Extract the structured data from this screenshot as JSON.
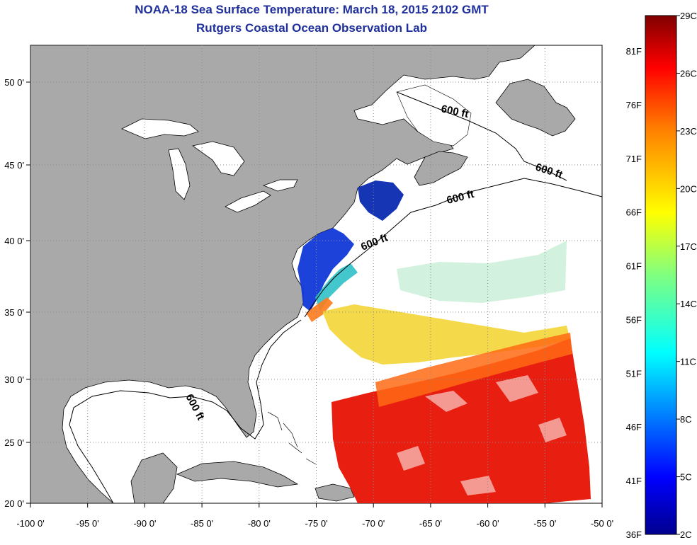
{
  "header": {
    "title": "NOAA-18 Sea Surface Temperature:  March 18, 2015 2102 GMT",
    "subtitle": "Rutgers Coastal Ocean Observation Lab"
  },
  "map": {
    "lon_ticks": [
      "-100 0'",
      "-95 0'",
      "-90 0'",
      "-85 0'",
      "-80 0'",
      "-75 0'",
      "-70 0'",
      "-65 0'",
      "-60 0'",
      "-55 0'",
      "-50 0'"
    ],
    "lat_ticks": [
      "50 0'",
      "45 0'",
      "40 0'",
      "35 0'",
      "30 0'",
      "25 0'",
      "20 0'"
    ],
    "isobath_labels": [
      "600 ft",
      "600 ft",
      "600 ft",
      "600 ft",
      "600 ft"
    ],
    "colors": {
      "land": "#a9a9a9",
      "ocean": "#ffffff",
      "gridlines": "#9a9a9a",
      "outline": "#000000"
    }
  },
  "colorbar": {
    "celsius_labels": [
      "29C",
      "26C",
      "23C",
      "20C",
      "17C",
      "14C",
      "11C",
      "8C",
      "5C",
      "2C"
    ],
    "fahrenheit_labels": [
      "81F",
      "76F",
      "71F",
      "66F",
      "61F",
      "56F",
      "51F",
      "46F",
      "41F",
      "36F"
    ],
    "colors": [
      "#00008f",
      "#0000ff",
      "#0080ff",
      "#00ffff",
      "#80ff80",
      "#ffff00",
      "#ff8000",
      "#ff0000",
      "#800000"
    ]
  }
}
